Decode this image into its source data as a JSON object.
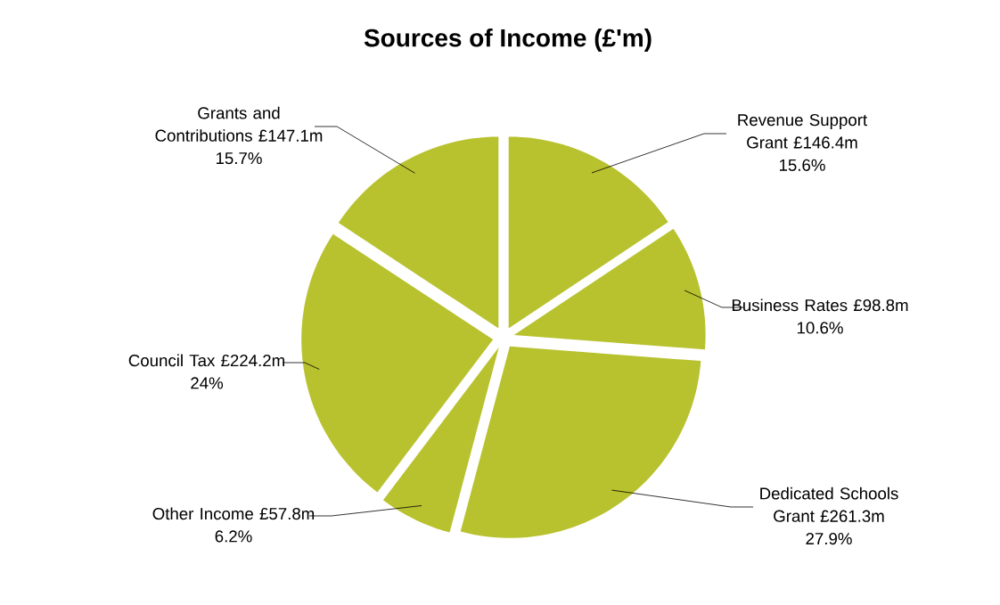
{
  "chart_data": {
    "type": "pie",
    "title": "Sources of Income (£'m)",
    "categories": [
      "Revenue Support Grant",
      "Business Rates",
      "Dedicated Schools Grant",
      "Other Income",
      "Council Tax",
      "Grants and Contributions"
    ],
    "values": [
      146.4,
      98.8,
      261.3,
      57.8,
      224.2,
      147.1
    ],
    "value_labels": [
      "£146.4m",
      "£98.8m",
      "£261.3m",
      "£57.8m",
      "£224.2m",
      "£147.1m"
    ],
    "annotations": [
      "15.6%",
      "10.6%",
      "27.9%",
      "6.2%",
      "24%",
      "15.7%"
    ],
    "colors": [
      "#b8c22e",
      "#b8c22e",
      "#b8c22e",
      "#b8c22e",
      "#b8c22e",
      "#b8c22e"
    ]
  }
}
